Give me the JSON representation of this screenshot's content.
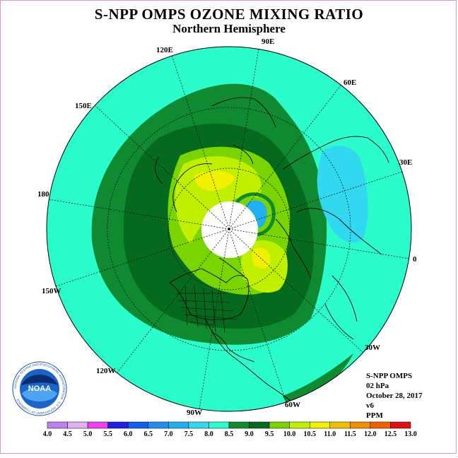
{
  "title": "S-NPP OMPS OZONE MIXING RATIO",
  "subtitle": "Northern Hemisphere",
  "longitude_labels": {
    "lon_90e": "90E",
    "lon_120e": "120E",
    "lon_60e": "60E",
    "lon_150e": "150E",
    "lon_30e": "30E",
    "lon_180": "180",
    "lon_0": "0",
    "lon_150w": "150W",
    "lon_30w": "30W",
    "lon_120w": "120W",
    "lon_60w": "60W",
    "lon_90w": "90W"
  },
  "info": {
    "instrument": "S-NPP OMPS",
    "level": "02 hPa",
    "date": "October 28, 2017",
    "version": "v6",
    "units": "PPM"
  },
  "logo_text": "NOAA",
  "logo_ring_text": "NATIONAL OCEANIC AND ATMOSPHERIC ADMINISTRATION · U.S. DEPARTMENT OF COMMERCE",
  "colorbar": {
    "labels": [
      "4.0",
      "4.5",
      "5.0",
      "5.5",
      "6.0",
      "6.5",
      "7.0",
      "7.5",
      "8.0",
      "8.5",
      "9.0",
      "9.5",
      "10.0",
      "10.5",
      "11.0",
      "11.5",
      "12.0",
      "12.5",
      "13.0"
    ],
    "colors": [
      "#c080f0",
      "#e0b0f0",
      "#f040f0",
      "#2020e0",
      "#1060f0",
      "#2090f0",
      "#20b0f0",
      "#30d8f0",
      "#2bfccc",
      "#108a30",
      "#066a1e",
      "#7ad400",
      "#c0f000",
      "#f0f000",
      "#f0c000",
      "#f09000",
      "#f06000",
      "#e01010",
      "#8b5a2b"
    ]
  },
  "map_colors": {
    "ocean_land_base": "#2bfccc",
    "level_8_5": "#108a30",
    "level_9_0": "#066a1e",
    "level_9_5": "#7ad400",
    "level_10_0": "#c0f000",
    "level_10_5": "#f0f000",
    "low_7_5": "#30d8f0",
    "low_7_0": "#20b0f0",
    "polar_night": "#ffffff"
  }
}
